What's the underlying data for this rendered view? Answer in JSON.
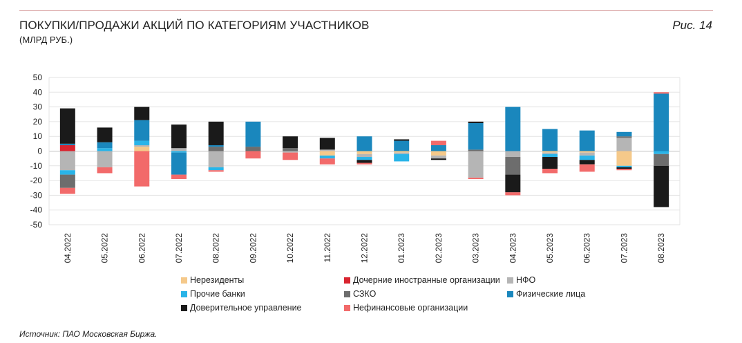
{
  "header": {
    "title": "ПОКУПКИ/ПРОДАЖИ АКЦИЙ ПО КАТЕГОРИЯМ УЧАСТНИКОВ",
    "subtitle": "(МЛРД РУБ.)",
    "figure": "Рис. 14"
  },
  "source": "Источник: ПАО Московская Биржа.",
  "chart_data": {
    "type": "bar",
    "stacked": true,
    "title": "",
    "xlabel": "",
    "ylabel": "",
    "ylim": [
      -50,
      50
    ],
    "yticks": [
      50,
      40,
      30,
      20,
      10,
      0,
      -10,
      -20,
      -30,
      -40,
      -50
    ],
    "grid": true,
    "legend_position": "bottom",
    "categories": [
      "04.2022",
      "05.2022",
      "06.2022",
      "07.2022",
      "08.2022",
      "09.2022",
      "10.2022",
      "11.2022",
      "12.2022",
      "01.2023",
      "02.2023",
      "03.2023",
      "04.2023",
      "05.2023",
      "06.2023",
      "07.2023",
      "08.2023"
    ],
    "series": [
      {
        "name": "Нерезиденты",
        "color": "#f5c98a",
        "values": [
          0,
          0,
          3,
          0,
          0,
          0,
          0,
          -3,
          -2,
          -1,
          -3,
          0,
          0,
          -1,
          -1,
          -10,
          0
        ]
      },
      {
        "name": "Дочерние иностранные организации",
        "color": "#d9242f",
        "values": [
          4,
          0,
          0,
          0,
          0,
          0,
          0,
          0,
          0,
          0,
          0,
          0,
          0,
          0,
          0,
          0,
          0
        ]
      },
      {
        "name": "НФО",
        "color": "#b5b5b5",
        "values": [
          -13,
          -11,
          1,
          2,
          -11,
          0,
          -1,
          1,
          -2,
          -1,
          -2,
          -18,
          -4,
          -1,
          -2,
          9,
          0
        ]
      },
      {
        "name": "Прочие банки",
        "color": "#29b4e8",
        "values": [
          -3,
          2,
          3,
          -1,
          -2,
          0,
          0,
          -2,
          -2,
          -5,
          0,
          0,
          0,
          -2,
          -3,
          -1,
          -2
        ]
      },
      {
        "name": "СЗКО",
        "color": "#6d6d6d",
        "values": [
          -9,
          0,
          0,
          0,
          3,
          3,
          2,
          0,
          0,
          0,
          0,
          1,
          -12,
          0,
          0,
          1,
          -8
        ]
      },
      {
        "name": "Физические лица",
        "color": "#1a87bd",
        "values": [
          1,
          4,
          14,
          -15,
          1,
          17,
          0,
          0,
          10,
          7,
          4,
          18,
          30,
          15,
          14,
          3,
          39
        ]
      },
      {
        "name": "Доверительное управление",
        "color": "#1a1a1a",
        "values": [
          24,
          10,
          9,
          16,
          16,
          0,
          8,
          8,
          -2,
          1,
          -1,
          1,
          -12,
          -8,
          -3,
          -1,
          -28
        ]
      },
      {
        "name": "Нефинансовые организации",
        "color": "#f26a6a",
        "values": [
          -4,
          -4,
          -24,
          -3,
          -1,
          -5,
          -5,
          -4,
          -1,
          0,
          3,
          -1,
          -2,
          -3,
          -5,
          -1,
          1
        ]
      }
    ]
  },
  "legend": {
    "items": [
      {
        "label": "Нерезиденты",
        "color": "#f5c98a"
      },
      {
        "label": "Дочерние иностранные организации",
        "color": "#d9242f"
      },
      {
        "label": "НФО",
        "color": "#b5b5b5"
      },
      {
        "label": "Прочие банки",
        "color": "#29b4e8"
      },
      {
        "label": "СЗКО",
        "color": "#6d6d6d"
      },
      {
        "label": "Физические лица",
        "color": "#1a87bd"
      },
      {
        "label": "Доверительное управление",
        "color": "#1a1a1a"
      },
      {
        "label": "Нефинансовые организации",
        "color": "#f26a6a"
      }
    ]
  }
}
